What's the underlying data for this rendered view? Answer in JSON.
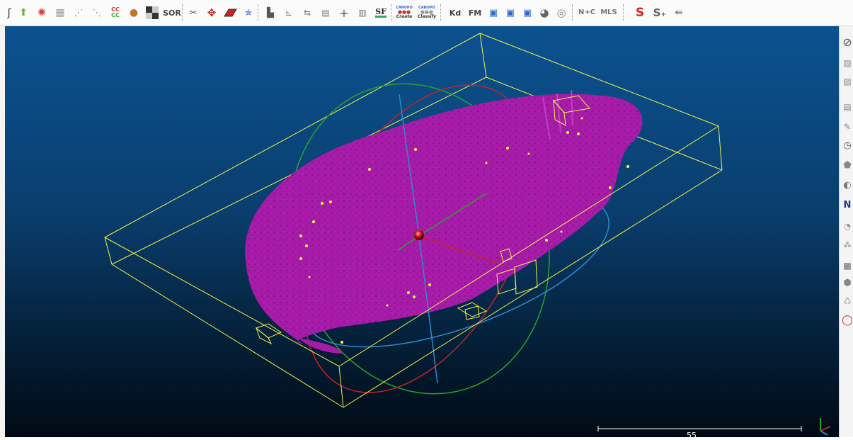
{
  "toolbar": {
    "sor_label": "SOR",
    "sf_label": "SF",
    "canupo_create_top": "CANUPO",
    "canupo_create_label": "Create",
    "canupo_classify_top": "CANUPO",
    "canupo_classify_label": "Classify",
    "kd_label": "Kd",
    "fm_label": "FM",
    "nc_label": "N+C",
    "mls_label": "MLS",
    "cc_label_top": "CC",
    "cc_label_bottom": "CC",
    "icons": [
      "scissors-icon",
      "rotate-icon",
      "plane-icon",
      "histogram-icon",
      "plus-icon",
      "sphere-icon"
    ]
  },
  "viewport": {
    "scale_label": "55",
    "background_top": "#0b5290",
    "background_bottom": "#010a14",
    "cloud_color": "#b01db0",
    "bbox_color": "#ffff33"
  },
  "rightbar": {
    "n_label": "N"
  }
}
